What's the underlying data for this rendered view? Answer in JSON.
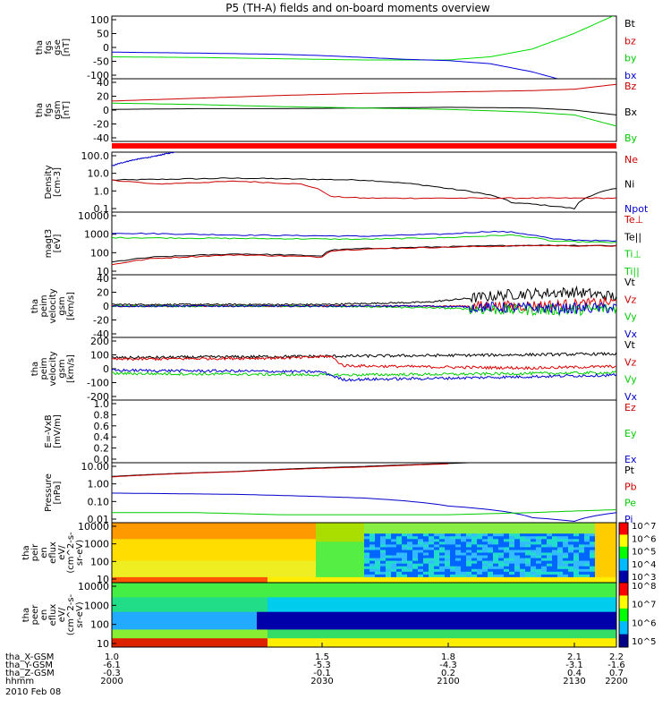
{
  "title": "P5 (TH-A) fields and on-board moments overview",
  "chart_data": [
    {
      "type": "line",
      "panel": "fgs_gse",
      "ylabel": [
        "tha",
        "fgs",
        "gse",
        "[nT]"
      ],
      "ylim": [
        -100,
        100
      ],
      "yticks": [
        "100",
        "50",
        "0",
        "-50",
        "-100"
      ],
      "legend": [
        {
          "name": "Bt",
          "color": "#000000"
        },
        {
          "name": "bz",
          "color": "#cc0000"
        },
        {
          "name": "by",
          "color": "#00cc00"
        },
        {
          "name": "bx",
          "color": "#0000cc"
        }
      ],
      "series": [
        {
          "name": "by",
          "color": "#00dd00",
          "x": [
            1.0,
            1.2,
            1.4,
            1.6,
            1.8,
            1.9,
            2.0,
            2.1,
            2.15,
            2.2
          ],
          "y": [
            -30,
            -32,
            -36,
            -40,
            -40,
            -30,
            -5,
            45,
            75,
            105
          ]
        },
        {
          "name": "bx",
          "color": "#0000dd",
          "x": [
            1.0,
            1.2,
            1.4,
            1.5,
            1.6,
            1.7,
            1.8,
            1.9,
            2.0,
            2.06
          ],
          "y": [
            -15,
            -18,
            -22,
            -26,
            -32,
            -38,
            -42,
            -52,
            -78,
            -100
          ]
        }
      ]
    },
    {
      "type": "line",
      "panel": "fgs_gsm",
      "ylabel": [
        "tha",
        "fgs",
        "gsm",
        "[nT]"
      ],
      "ylim": [
        -50,
        40
      ],
      "yticks": [
        "40",
        "20",
        "0",
        "-20",
        "-40"
      ],
      "legend": [
        {
          "name": "Bz",
          "color": "#cc0000"
        },
        {
          "name": "Bx",
          "color": "#000000"
        },
        {
          "name": "By",
          "color": "#00cc00"
        }
      ],
      "series": [
        {
          "name": "Bz",
          "color": "#cc0000",
          "x": [
            1.0,
            1.2,
            1.4,
            1.6,
            1.8,
            2.0,
            2.1,
            2.2
          ],
          "y": [
            8,
            12,
            16,
            19,
            21,
            23,
            25,
            32
          ]
        },
        {
          "name": "Bx",
          "color": "#000000",
          "x": [
            1.0,
            1.2,
            1.4,
            1.6,
            1.8,
            2.0,
            2.1,
            2.2
          ],
          "y": [
            -4,
            -3,
            -3,
            -2,
            -1,
            -2,
            -5,
            -12
          ]
        },
        {
          "name": "By",
          "color": "#00cc00",
          "x": [
            1.0,
            1.2,
            1.4,
            1.6,
            1.8,
            2.0,
            2.1,
            2.2
          ],
          "y": [
            5,
            3,
            0,
            -2,
            -4,
            -8,
            -12,
            -28
          ]
        }
      ]
    },
    {
      "type": "line",
      "panel": "density",
      "ylabel": [
        "Density",
        "[cm-3]"
      ],
      "scale": "log",
      "ylim": [
        0.1,
        100
      ],
      "yticks": [
        "100.0",
        "10.0",
        "1.0",
        "0.1"
      ],
      "legend": [
        {
          "name": "Ne",
          "color": "#cc0000"
        },
        {
          "name": "Ni",
          "color": "#000000"
        },
        {
          "name": "Npot",
          "color": "#0000cc"
        }
      ],
      "series": [
        {
          "name": "Ni",
          "color": "#000000",
          "x": [
            1.0,
            1.3,
            1.6,
            1.8,
            1.95,
            2.1,
            2.2
          ],
          "y": [
            4,
            5,
            4,
            1.5,
            0.3,
            0.15,
            1.5
          ]
        },
        {
          "name": "Ne",
          "color": "#cc0000",
          "x": [
            1.0,
            1.1,
            1.2,
            1.3,
            1.45,
            1.52,
            1.6,
            1.8,
            2.0,
            2.2
          ],
          "y": [
            4,
            2.5,
            3,
            3.5,
            2.5,
            0.6,
            0.5,
            0.5,
            0.5,
            0.5
          ]
        },
        {
          "name": "Npot",
          "color": "#0000cc",
          "x": [
            1.0,
            1.05,
            1.1,
            1.15
          ],
          "y": [
            20,
            40,
            60,
            100
          ]
        }
      ]
    },
    {
      "type": "line",
      "panel": "temperature",
      "ylabel": [
        "magt3",
        "[eV]"
      ],
      "scale": "log",
      "ylim": [
        10,
        10000
      ],
      "yticks": [
        "10000",
        "1000",
        "100",
        "10"
      ],
      "legend": [
        {
          "name": "Te⊥",
          "color": "#cc0000"
        },
        {
          "name": "Te||",
          "color": "#000000"
        },
        {
          "name": "Ti⊥",
          "color": "#00cc00"
        },
        {
          "name": "Ti||",
          "color": "#00cc00"
        }
      ],
      "series": [
        {
          "name": "Ti",
          "color": "#0000cc",
          "x": [
            1.0,
            1.3,
            1.6,
            1.8,
            1.9,
            1.95,
            2.05,
            2.2
          ],
          "y": [
            1000,
            800,
            700,
            900,
            1200,
            1100,
            500,
            400
          ]
        },
        {
          "name": "Ti||",
          "color": "#00cc00",
          "x": [
            1.0,
            1.3,
            1.6,
            1.8,
            1.95,
            2.05,
            2.2
          ],
          "y": [
            600,
            550,
            500,
            600,
            800,
            400,
            350
          ]
        },
        {
          "name": "Te||",
          "color": "#000000",
          "x": [
            1.0,
            1.1,
            1.3,
            1.5,
            1.52,
            1.6,
            1.8,
            2.0,
            2.2
          ],
          "y": [
            40,
            70,
            100,
            80,
            150,
            180,
            220,
            260,
            250
          ]
        },
        {
          "name": "Te⊥",
          "color": "#cc0000",
          "x": [
            1.0,
            1.1,
            1.3,
            1.5,
            1.52,
            1.6,
            1.8,
            2.0,
            2.2
          ],
          "y": [
            30,
            60,
            90,
            70,
            140,
            170,
            210,
            250,
            240
          ]
        }
      ]
    },
    {
      "type": "line",
      "panel": "peim_velocity_gsm_noisy",
      "ylabel": [
        "tha",
        "peim",
        "velocity",
        "gsm",
        "[km/s]"
      ],
      "ylim": [
        -40,
        40
      ],
      "yticks": [
        "40",
        "20",
        "0",
        "-20",
        "-40"
      ],
      "legend": [
        {
          "name": "Vt",
          "color": "#000000"
        },
        {
          "name": "Vz",
          "color": "#cc0000"
        },
        {
          "name": "Vy",
          "color": "#00cc00"
        },
        {
          "name": "Vx",
          "color": "#0000cc"
        }
      ],
      "series": [
        {
          "name": "Vt",
          "color": "#000000",
          "x": [
            1.0,
            1.5,
            1.75,
            1.95,
            2.1,
            2.2
          ],
          "y": [
            2,
            2,
            5,
            15,
            18,
            12
          ]
        },
        {
          "name": "Vz",
          "color": "#dd0000",
          "x": [
            1.0,
            1.5,
            1.75,
            1.95,
            2.1,
            2.2
          ],
          "y": [
            0,
            0,
            0,
            0,
            2,
            5
          ]
        },
        {
          "name": "Vy",
          "color": "#00cc00",
          "x": [
            1.0,
            1.5,
            1.75,
            1.95,
            2.1,
            2.2
          ],
          "y": [
            0,
            0,
            -2,
            -5,
            -5,
            -3
          ]
        },
        {
          "name": "Vx",
          "color": "#0000cc",
          "x": [
            1.0,
            1.5,
            1.75,
            1.95,
            2.1,
            2.2
          ],
          "y": [
            0,
            0,
            0,
            -2,
            -3,
            -2
          ]
        }
      ]
    },
    {
      "type": "line",
      "panel": "peim_velocity_gsm",
      "ylabel": [
        "tha",
        "peim",
        "velocity",
        "gsm",
        "[km/s]"
      ],
      "ylim": [
        -200,
        200
      ],
      "yticks": [
        "200",
        "100",
        "0",
        "-100",
        "-200"
      ],
      "legend": [
        {
          "name": "Vt",
          "color": "#000000"
        },
        {
          "name": "Vz",
          "color": "#cc0000"
        },
        {
          "name": "Vy",
          "color": "#00cc00"
        },
        {
          "name": "Vx",
          "color": "#0000cc"
        }
      ],
      "series": [
        {
          "name": "Vt",
          "color": "#000000",
          "x": [
            1.0,
            1.5,
            1.52,
            1.8,
            2.0,
            2.2
          ],
          "y": [
            70,
            80,
            80,
            85,
            90,
            95
          ]
        },
        {
          "name": "Vz",
          "color": "#dd0000",
          "x": [
            1.0,
            1.45,
            1.52,
            1.55,
            1.8,
            2.0,
            2.2
          ],
          "y": [
            60,
            70,
            80,
            20,
            10,
            5,
            15
          ]
        },
        {
          "name": "Vy",
          "color": "#00cc00",
          "x": [
            1.0,
            1.3,
            1.52,
            1.8,
            2.0,
            2.2
          ],
          "y": [
            -30,
            -35,
            -40,
            -35,
            -30,
            -25
          ]
        },
        {
          "name": "Vx",
          "color": "#0000cc",
          "x": [
            1.0,
            1.3,
            1.5,
            1.55,
            1.8,
            2.0,
            2.2
          ],
          "y": [
            -10,
            -15,
            -20,
            -70,
            -60,
            -50,
            -40
          ]
        }
      ]
    },
    {
      "type": "line",
      "panel": "electric_field",
      "ylabel": [
        "E=-VxB",
        "[mV/m]"
      ],
      "ylim": [
        0,
        1
      ],
      "yticks": [
        "1.0",
        "0.8",
        "0.6",
        "0.4",
        "0.2",
        "0.0"
      ],
      "legend": [
        {
          "name": "Ez",
          "color": "#cc0000"
        },
        {
          "name": "Ey",
          "color": "#00cc00"
        },
        {
          "name": "Ex",
          "color": "#0000cc"
        }
      ],
      "series": []
    },
    {
      "type": "line",
      "panel": "pressure",
      "ylabel": [
        "Pressure",
        "[nPa]"
      ],
      "scale": "log",
      "ylim": [
        0.005,
        20
      ],
      "yticks": [
        "10.00",
        "1.00",
        "0.10",
        "0.01"
      ],
      "legend": [
        {
          "name": "Pt",
          "color": "#000000"
        },
        {
          "name": "Pb",
          "color": "#cc0000"
        },
        {
          "name": "Pe",
          "color": "#00cc00"
        },
        {
          "name": "Pi",
          "color": "#0000cc"
        }
      ],
      "series": [
        {
          "name": "Pt",
          "color": "#000000",
          "x": [
            1.0,
            1.3,
            1.6,
            1.8,
            1.85
          ],
          "y": [
            3,
            6,
            12,
            18,
            20
          ]
        },
        {
          "name": "Pb",
          "color": "#cc0000",
          "x": [
            1.0,
            1.3,
            1.6,
            1.8
          ],
          "y": [
            2.8,
            5.8,
            11,
            17
          ]
        },
        {
          "name": "Pi",
          "color": "#0000cc",
          "x": [
            1.0,
            1.3,
            1.6,
            1.8,
            2.0,
            2.1,
            2.2
          ],
          "y": [
            0.3,
            0.25,
            0.15,
            0.05,
            0.01,
            0.006,
            0.02
          ]
        },
        {
          "name": "Pe",
          "color": "#00cc00",
          "x": [
            1.0,
            1.2,
            1.4,
            1.6,
            1.8,
            2.0,
            2.2
          ],
          "y": [
            0.02,
            0.02,
            0.015,
            0.015,
            0.015,
            0.02,
            0.03
          ]
        }
      ]
    },
    {
      "type": "heatmap",
      "panel": "peir_spectrogram",
      "ylabel": [
        "tha",
        "peir",
        "en",
        "eflux",
        "eV/",
        "(cm^2-s-",
        "sr-eV)"
      ],
      "yticks": [
        "10000",
        "1000",
        "100",
        "10"
      ],
      "colorbar": [
        "10^7",
        "10^6",
        "10^5",
        "10^4",
        "10^3"
      ],
      "palette": [
        "#ff0000",
        "#ffff00",
        "#00ff00",
        "#00bbff",
        "#0000aa"
      ]
    },
    {
      "type": "heatmap",
      "panel": "peer_spectrogram",
      "ylabel": [
        "tha",
        "peer",
        "en",
        "eflux",
        "eV/",
        "(cm^2-s-",
        "sr-eV)"
      ],
      "yticks": [
        "10000",
        "1000",
        "100",
        "10"
      ],
      "colorbar": [
        "10^8",
        "10^7",
        "10^6",
        "10^5"
      ],
      "palette": [
        "#ff0000",
        "#ffff00",
        "#00ff00",
        "#00bbff",
        "#000088"
      ]
    }
  ],
  "xaxis": {
    "ticks_x": [
      1.0,
      1.5,
      1.8,
      2.1,
      2.2
    ],
    "rows": [
      {
        "label": "tha_X-GSM",
        "values": [
          "1.0",
          "1.5",
          "1.8",
          "2.1",
          "2.2"
        ]
      },
      {
        "label": "tha_Y-GSM",
        "values": [
          "-6.1",
          "-5.3",
          "-4.3",
          "-3.1",
          "-1.6"
        ]
      },
      {
        "label": "tha_Z-GSM",
        "values": [
          "-0.3",
          "-0.1",
          "0.2",
          "0.4",
          "0.7"
        ]
      },
      {
        "label": "hhmm",
        "values": [
          "2000",
          "2030",
          "2100",
          "2130",
          "2200"
        ]
      }
    ],
    "date": "2010 Feb 08"
  }
}
